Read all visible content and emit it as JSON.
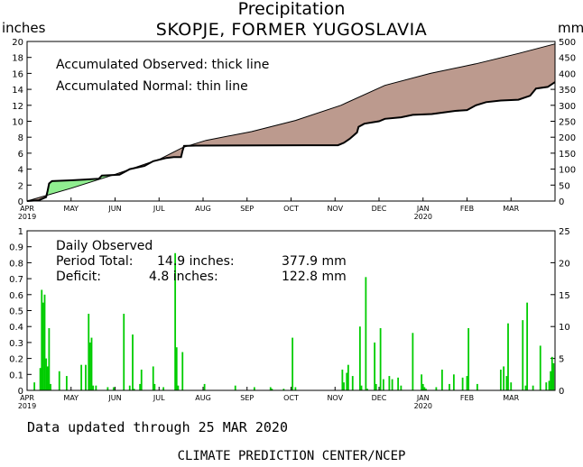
{
  "header": {
    "title": "Precipitation",
    "subtitle": "SKOPJE, FORMER YUGOSLAVIA",
    "unit_left": "inches",
    "unit_right": "mm"
  },
  "footer": {
    "updated": "Data updated through 25 MAR 2020",
    "credit": "CLIMATE PREDICTION CENTER/NCEP"
  },
  "colors": {
    "observed_above_normal": "#90ee90",
    "observed_below_normal": "#bc9a8e",
    "daily_bars": "#00cc00",
    "line": "#000000"
  },
  "chart_data": [
    {
      "type": "area",
      "annotations": [
        "Accumulated Observed: thick line",
        "Accumulated Normal: thin line"
      ],
      "ylim": [
        0,
        20
      ],
      "yticks": [
        0,
        2,
        4,
        6,
        8,
        10,
        12,
        14,
        16,
        18,
        20
      ],
      "y2lim": [
        0,
        500
      ],
      "y2ticks": [
        0,
        50,
        100,
        150,
        200,
        250,
        300,
        350,
        400,
        450,
        500
      ],
      "month_labels": [
        "APR",
        "MAY",
        "JUN",
        "JUL",
        "AUG",
        "SEP",
        "OCT",
        "NOV",
        "DEC",
        "JAN",
        "FEB",
        "MAR"
      ],
      "year_labels": [
        {
          "month": "APR",
          "year": "2019"
        },
        {
          "month": "JAN",
          "year": "2020"
        }
      ],
      "days": 360,
      "observed": {
        "name": "Accumulated Observed",
        "points": [
          [
            0,
            0
          ],
          [
            8,
            0.1
          ],
          [
            13,
            0.5
          ],
          [
            14,
            1.3
          ],
          [
            15,
            2.2
          ],
          [
            17,
            2.5
          ],
          [
            30,
            2.6
          ],
          [
            40,
            2.7
          ],
          [
            49,
            2.8
          ],
          [
            51,
            3.2
          ],
          [
            63,
            3.3
          ],
          [
            70,
            4.0
          ],
          [
            80,
            4.4
          ],
          [
            86,
            5.0
          ],
          [
            95,
            5.4
          ],
          [
            100,
            5.5
          ],
          [
            105,
            5.5
          ],
          [
            106,
            6.3
          ],
          [
            107,
            6.9
          ],
          [
            115,
            6.95
          ],
          [
            190,
            7.0
          ],
          [
            212,
            7.0
          ],
          [
            216,
            7.3
          ],
          [
            220,
            7.8
          ],
          [
            225,
            8.6
          ],
          [
            226,
            9.3
          ],
          [
            230,
            9.7
          ],
          [
            240,
            10.0
          ],
          [
            244,
            10.3
          ],
          [
            255,
            10.5
          ],
          [
            263,
            10.8
          ],
          [
            276,
            10.9
          ],
          [
            292,
            11.3
          ],
          [
            300,
            11.4
          ],
          [
            306,
            12.0
          ],
          [
            313,
            12.4
          ],
          [
            323,
            12.6
          ],
          [
            335,
            12.7
          ],
          [
            343,
            13.2
          ],
          [
            347,
            14.1
          ],
          [
            355,
            14.3
          ],
          [
            360,
            14.9
          ]
        ]
      },
      "normal": {
        "name": "Accumulated Normal",
        "points": [
          [
            0,
            0
          ],
          [
            30,
            1.6
          ],
          [
            61,
            3.4
          ],
          [
            91,
            5.3
          ],
          [
            106,
            6.7
          ],
          [
            122,
            7.6
          ],
          [
            153,
            8.7
          ],
          [
            183,
            10.1
          ],
          [
            214,
            12.0
          ],
          [
            244,
            14.5
          ],
          [
            275,
            16.0
          ],
          [
            306,
            17.2
          ],
          [
            335,
            18.5
          ],
          [
            360,
            19.7
          ]
        ]
      }
    },
    {
      "type": "bar",
      "annotations": [
        "Daily Observed"
      ],
      "period_total": {
        "label": "Period Total:",
        "inches": "14.9 inches:",
        "mm": "377.9 mm"
      },
      "deficit": {
        "label": "Deficit:",
        "inches": "4.8 inches:",
        "mm": "122.8 mm"
      },
      "ylim": [
        0,
        1
      ],
      "yticks": [
        0,
        0.1,
        0.2,
        0.3,
        0.4,
        0.5,
        0.6,
        0.7,
        0.8,
        0.9,
        1
      ],
      "y2lim": [
        0,
        25
      ],
      "y2ticks": [
        0,
        5,
        10,
        15,
        20,
        25
      ],
      "month_labels": [
        "APR",
        "MAY",
        "JUN",
        "JUL",
        "AUG",
        "SEP",
        "OCT",
        "NOV",
        "DEC",
        "JAN",
        "FEB",
        "MAR"
      ],
      "year_labels": [
        {
          "month": "APR",
          "year": "2019"
        },
        {
          "month": "JAN",
          "year": "2020"
        }
      ],
      "days": 360,
      "series": [
        {
          "x": [
            5,
            9,
            10,
            11,
            12,
            13,
            14,
            15,
            16,
            22,
            27,
            37,
            40,
            42,
            43,
            44,
            45,
            47,
            55,
            59,
            66,
            70,
            72,
            73,
            77,
            78,
            86,
            87,
            93,
            101,
            102,
            103,
            106,
            121,
            142,
            155,
            166,
            167,
            175,
            181,
            183,
            215,
            216,
            218,
            219,
            222,
            227,
            228,
            231,
            232,
            237,
            238,
            241,
            243,
            247,
            249,
            253,
            255,
            263,
            269,
            270,
            271,
            272,
            279,
            283,
            288,
            291,
            297,
            300,
            301,
            307,
            323,
            325,
            327,
            328,
            330,
            338,
            340,
            341,
            345,
            350,
            354,
            356,
            357,
            358,
            359
          ],
          "values": [
            0.05,
            0.14,
            0.63,
            0.55,
            0.6,
            0.2,
            0.15,
            0.39,
            0.04,
            0.12,
            0.09,
            0.16,
            0.16,
            0.48,
            0.3,
            0.33,
            0.03,
            0.03,
            0.02,
            0.02,
            0.48,
            0.03,
            0.35,
            0.01,
            0.04,
            0.13,
            0.15,
            0.04,
            0.02,
            0.86,
            0.27,
            0.03,
            0.24,
            0.04,
            0.03,
            0.02,
            0.02,
            0.01,
            0.01,
            0.33,
            0.02,
            0.13,
            0.05,
            0.11,
            0.16,
            0.09,
            0.4,
            0.03,
            0.71,
            0.01,
            0.3,
            0.04,
            0.39,
            0.07,
            0.09,
            0.07,
            0.08,
            0.03,
            0.36,
            0.1,
            0.04,
            0.02,
            0.01,
            0.02,
            0.13,
            0.04,
            0.1,
            0.08,
            0.09,
            0.39,
            0.04,
            0.13,
            0.15,
            0.09,
            0.42,
            0.05,
            0.44,
            0.03,
            0.55,
            0.03,
            0.28,
            0.05,
            0.06,
            0.12,
            0.21,
            0.17
          ]
        }
      ]
    }
  ]
}
